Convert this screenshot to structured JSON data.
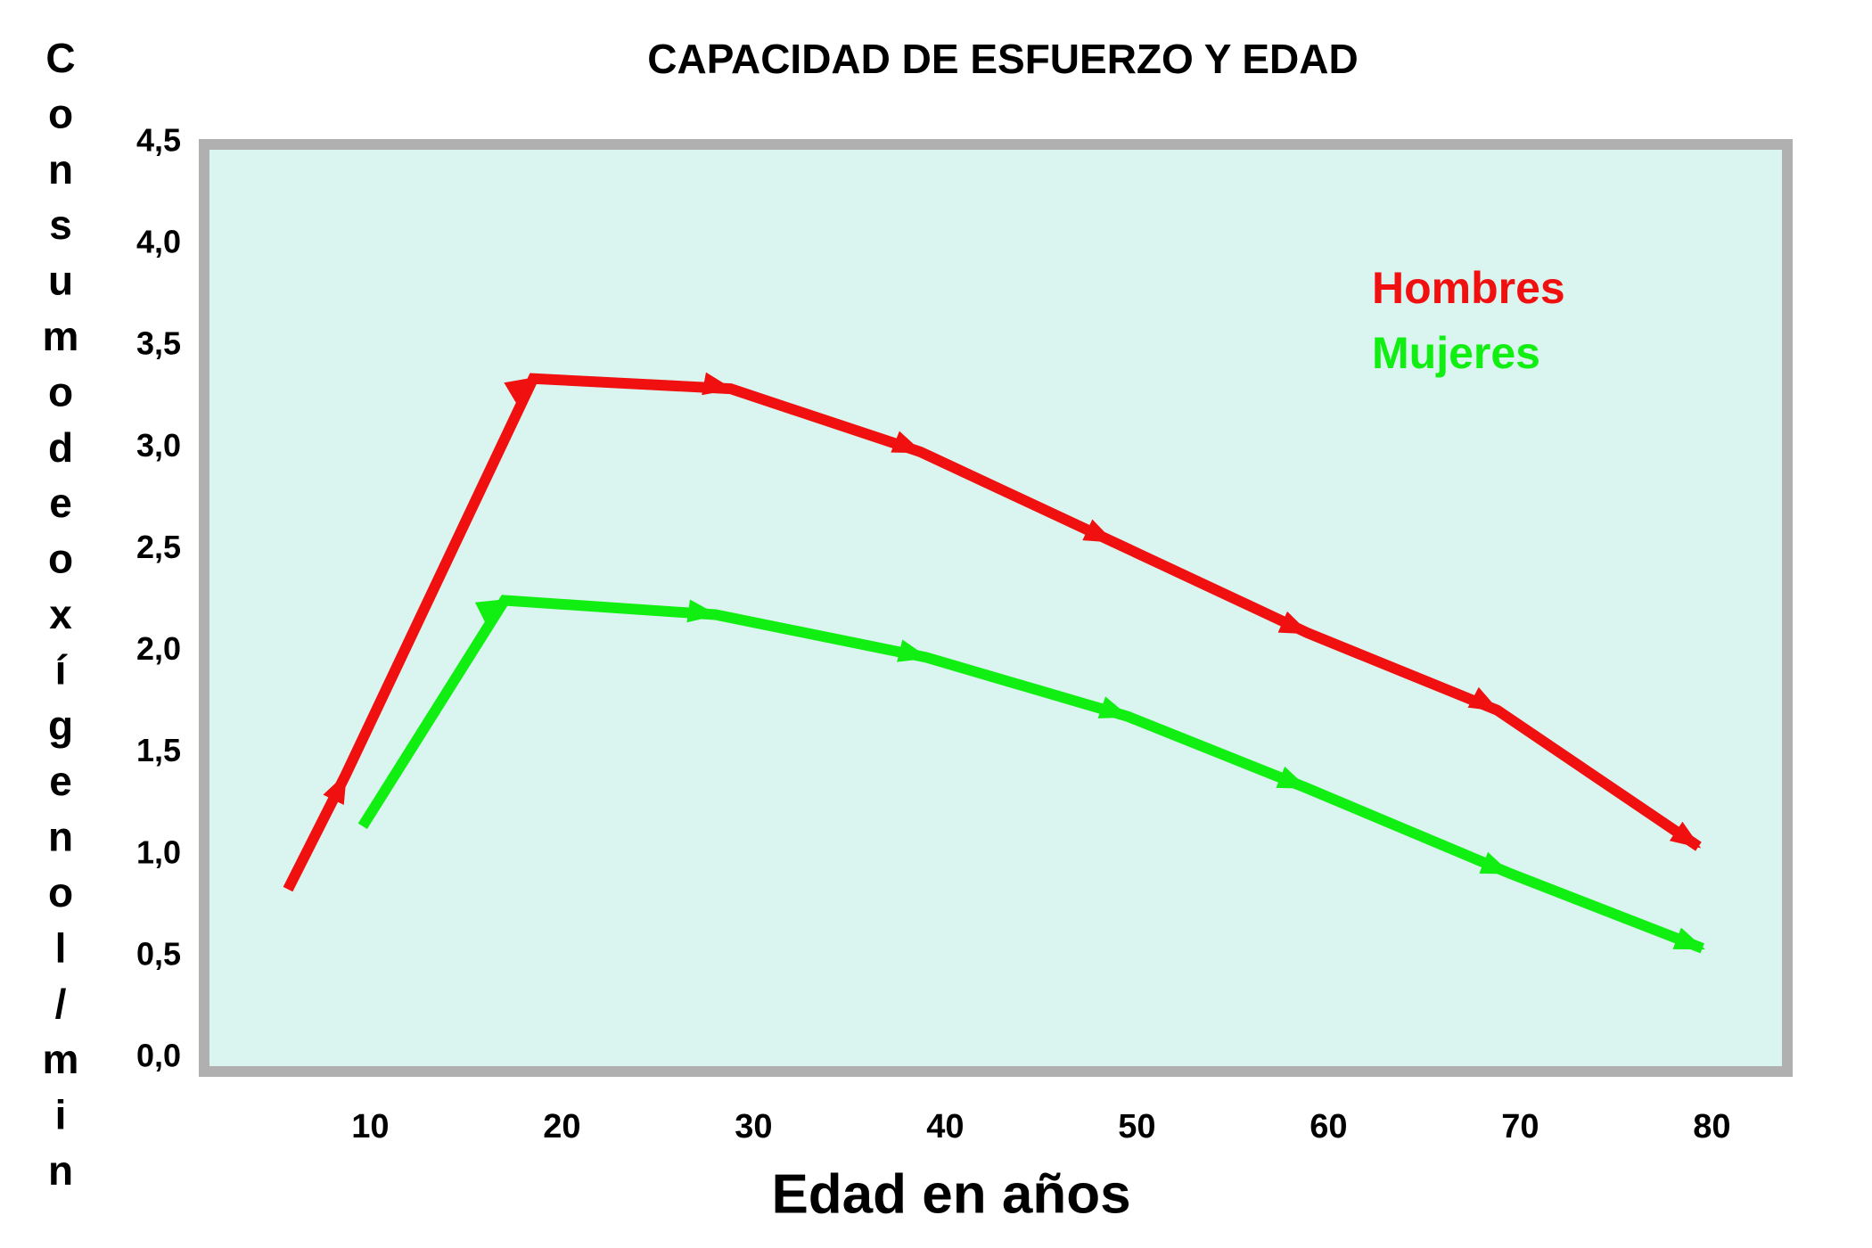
{
  "chart_data": {
    "type": "line",
    "title": "CAPACIDAD DE ESFUERZO Y EDAD",
    "x_label": "Edad en años",
    "y_label": "Consumo de oxígeno l/min",
    "xlim": [
      1.7,
      83.7
    ],
    "xticks": [
      10,
      20,
      30,
      40,
      50,
      60,
      70,
      80
    ],
    "ylim": [
      0,
      4.5
    ],
    "yticks": [
      {
        "value": 0,
        "label": "0,0"
      },
      {
        "value": 0.5,
        "label": "0,5"
      },
      {
        "value": 1,
        "label": "1,0"
      },
      {
        "value": 1.5,
        "label": "1,5"
      },
      {
        "value": 2,
        "label": "2,0"
      },
      {
        "value": 2.5,
        "label": "2,5"
      },
      {
        "value": 3,
        "label": "3,0"
      },
      {
        "value": 3.5,
        "label": "3,5"
      },
      {
        "value": 4,
        "label": "4,0"
      },
      {
        "value": 4.5,
        "label": "4,5"
      }
    ],
    "legend": "upper right",
    "series": [
      {
        "name": "Hombres",
        "color": "#f01010",
        "x": [
          5.7,
          8.7,
          18.5,
          28.8,
          38.7,
          48.7,
          58.9,
          68.8,
          79.3
        ],
        "values": [
          0.83,
          1.39,
          3.34,
          3.29,
          2.98,
          2.54,
          2.09,
          1.71,
          1.04
        ]
      },
      {
        "name": "Mujeres",
        "color": "#11ee11",
        "x": [
          9.6,
          17.0,
          28.0,
          39.0,
          49.5,
          58.8,
          69.4,
          79.5
        ],
        "values": [
          1.14,
          2.25,
          2.18,
          1.97,
          1.68,
          1.33,
          0.91,
          0.54
        ]
      }
    ]
  }
}
